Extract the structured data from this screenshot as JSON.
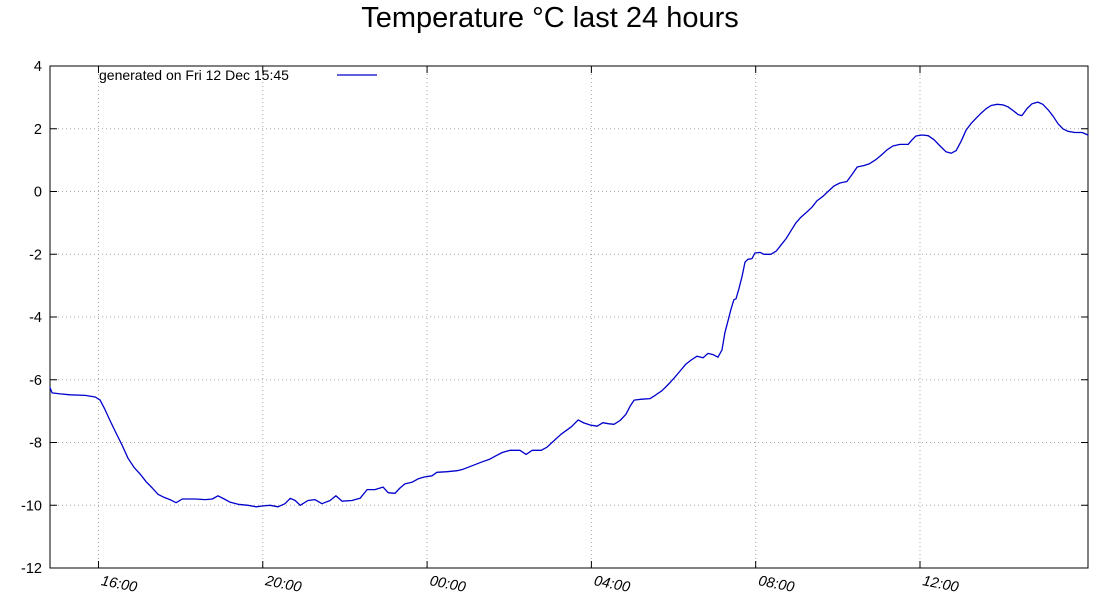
{
  "title": "Temperature °C last 24 hours",
  "legend": {
    "label": "generated on Fri 12 Dec 15:45",
    "position": "top-left"
  },
  "colors": {
    "series": "#0000cc",
    "grid": "#a8a8a8",
    "border": "#000000",
    "text": "#000000",
    "background": "#ffffff"
  },
  "chart_data": {
    "type": "line",
    "title": "Temperature °C last 24 hours",
    "xlabel": "",
    "ylabel": "",
    "grid": true,
    "legend_position": "top-left",
    "x_axis": {
      "min": 14.82,
      "max": 40.09,
      "ticks": [
        {
          "t": 16,
          "label": "16:00"
        },
        {
          "t": 20,
          "label": "20:00"
        },
        {
          "t": 24,
          "label": "00:00"
        },
        {
          "t": 28,
          "label": "04:00"
        },
        {
          "t": 32,
          "label": "08:00"
        },
        {
          "t": 36,
          "label": "12:00"
        }
      ]
    },
    "y_axis": {
      "min": -12,
      "max": 4,
      "tick_step": 2,
      "ticks": [
        4,
        2,
        0,
        -2,
        -4,
        -6,
        -8,
        -10,
        -12
      ]
    },
    "series": [
      {
        "name": "generated on Fri 12 Dec 15:45",
        "color": "#0000cc",
        "points": [
          [
            14.82,
            -6.25
          ],
          [
            14.87,
            -6.42
          ],
          [
            15.07,
            -6.45
          ],
          [
            15.31,
            -6.48
          ],
          [
            15.68,
            -6.5
          ],
          [
            15.92,
            -6.55
          ],
          [
            16.04,
            -6.65
          ],
          [
            16.16,
            -6.95
          ],
          [
            16.28,
            -7.3
          ],
          [
            16.43,
            -7.7
          ],
          [
            16.58,
            -8.1
          ],
          [
            16.72,
            -8.5
          ],
          [
            16.87,
            -8.8
          ],
          [
            17.01,
            -9.0
          ],
          [
            17.16,
            -9.25
          ],
          [
            17.31,
            -9.45
          ],
          [
            17.45,
            -9.65
          ],
          [
            17.6,
            -9.75
          ],
          [
            17.74,
            -9.82
          ],
          [
            17.89,
            -9.92
          ],
          [
            18.04,
            -9.8
          ],
          [
            18.35,
            -9.8
          ],
          [
            18.6,
            -9.82
          ],
          [
            18.77,
            -9.8
          ],
          [
            18.91,
            -9.7
          ],
          [
            19.06,
            -9.8
          ],
          [
            19.2,
            -9.9
          ],
          [
            19.4,
            -9.97
          ],
          [
            19.64,
            -10.0
          ],
          [
            19.84,
            -10.05
          ],
          [
            20.01,
            -10.02
          ],
          [
            20.18,
            -10.0
          ],
          [
            20.37,
            -10.05
          ],
          [
            20.54,
            -9.95
          ],
          [
            20.67,
            -9.78
          ],
          [
            20.79,
            -9.85
          ],
          [
            20.91,
            -10.0
          ],
          [
            21.1,
            -9.85
          ],
          [
            21.27,
            -9.82
          ],
          [
            21.44,
            -9.95
          ],
          [
            21.64,
            -9.85
          ],
          [
            21.78,
            -9.7
          ],
          [
            21.93,
            -9.87
          ],
          [
            22.17,
            -9.85
          ],
          [
            22.37,
            -9.78
          ],
          [
            22.54,
            -9.5
          ],
          [
            22.73,
            -9.5
          ],
          [
            22.93,
            -9.42
          ],
          [
            23.05,
            -9.6
          ],
          [
            23.22,
            -9.62
          ],
          [
            23.34,
            -9.45
          ],
          [
            23.46,
            -9.32
          ],
          [
            23.63,
            -9.27
          ],
          [
            23.78,
            -9.16
          ],
          [
            23.93,
            -9.1
          ],
          [
            24.12,
            -9.06
          ],
          [
            24.24,
            -8.95
          ],
          [
            24.49,
            -8.93
          ],
          [
            24.73,
            -8.9
          ],
          [
            24.88,
            -8.85
          ],
          [
            25.1,
            -8.74
          ],
          [
            25.31,
            -8.63
          ],
          [
            25.53,
            -8.53
          ],
          [
            25.68,
            -8.42
          ],
          [
            25.83,
            -8.32
          ],
          [
            26.02,
            -8.25
          ],
          [
            26.26,
            -8.25
          ],
          [
            26.41,
            -8.38
          ],
          [
            26.56,
            -8.25
          ],
          [
            26.78,
            -8.25
          ],
          [
            26.92,
            -8.15
          ],
          [
            27.04,
            -8.0
          ],
          [
            27.26,
            -7.74
          ],
          [
            27.51,
            -7.5
          ],
          [
            27.68,
            -7.28
          ],
          [
            27.82,
            -7.38
          ],
          [
            27.99,
            -7.45
          ],
          [
            28.14,
            -7.48
          ],
          [
            28.28,
            -7.37
          ],
          [
            28.41,
            -7.4
          ],
          [
            28.55,
            -7.42
          ],
          [
            28.7,
            -7.3
          ],
          [
            28.84,
            -7.1
          ],
          [
            28.94,
            -6.85
          ],
          [
            29.04,
            -6.65
          ],
          [
            29.23,
            -6.62
          ],
          [
            29.43,
            -6.6
          ],
          [
            29.55,
            -6.5
          ],
          [
            29.72,
            -6.35
          ],
          [
            29.87,
            -6.15
          ],
          [
            30.01,
            -5.95
          ],
          [
            30.16,
            -5.72
          ],
          [
            30.3,
            -5.5
          ],
          [
            30.43,
            -5.37
          ],
          [
            30.57,
            -5.25
          ],
          [
            30.72,
            -5.3
          ],
          [
            30.84,
            -5.16
          ],
          [
            30.96,
            -5.2
          ],
          [
            31.08,
            -5.28
          ],
          [
            31.18,
            -5.05
          ],
          [
            31.25,
            -4.5
          ],
          [
            31.33,
            -4.1
          ],
          [
            31.4,
            -3.75
          ],
          [
            31.47,
            -3.45
          ],
          [
            31.52,
            -3.42
          ],
          [
            31.59,
            -3.1
          ],
          [
            31.67,
            -2.7
          ],
          [
            31.74,
            -2.25
          ],
          [
            31.81,
            -2.16
          ],
          [
            31.91,
            -2.14
          ],
          [
            31.98,
            -1.96
          ],
          [
            32.11,
            -1.94
          ],
          [
            32.2,
            -2.0
          ],
          [
            32.37,
            -2.0
          ],
          [
            32.5,
            -1.9
          ],
          [
            32.62,
            -1.7
          ],
          [
            32.74,
            -1.5
          ],
          [
            32.86,
            -1.25
          ],
          [
            32.98,
            -1.0
          ],
          [
            33.1,
            -0.82
          ],
          [
            33.25,
            -0.65
          ],
          [
            33.37,
            -0.5
          ],
          [
            33.49,
            -0.3
          ],
          [
            33.64,
            -0.15
          ],
          [
            33.76,
            0.0
          ],
          [
            33.91,
            0.18
          ],
          [
            34.05,
            0.27
          ],
          [
            34.22,
            0.32
          ],
          [
            34.35,
            0.55
          ],
          [
            34.47,
            0.78
          ],
          [
            34.64,
            0.83
          ],
          [
            34.76,
            0.88
          ],
          [
            34.91,
            1.0
          ],
          [
            35.05,
            1.15
          ],
          [
            35.2,
            1.33
          ],
          [
            35.34,
            1.45
          ],
          [
            35.51,
            1.5
          ],
          [
            35.71,
            1.5
          ],
          [
            35.81,
            1.65
          ],
          [
            35.9,
            1.77
          ],
          [
            36.05,
            1.8
          ],
          [
            36.2,
            1.78
          ],
          [
            36.34,
            1.65
          ],
          [
            36.49,
            1.45
          ],
          [
            36.63,
            1.27
          ],
          [
            36.76,
            1.22
          ],
          [
            36.88,
            1.3
          ],
          [
            37.0,
            1.6
          ],
          [
            37.12,
            1.95
          ],
          [
            37.24,
            2.16
          ],
          [
            37.36,
            2.33
          ],
          [
            37.49,
            2.5
          ],
          [
            37.61,
            2.64
          ],
          [
            37.73,
            2.74
          ],
          [
            37.88,
            2.78
          ],
          [
            38.02,
            2.76
          ],
          [
            38.14,
            2.7
          ],
          [
            38.27,
            2.58
          ],
          [
            38.39,
            2.45
          ],
          [
            38.48,
            2.42
          ],
          [
            38.61,
            2.65
          ],
          [
            38.73,
            2.8
          ],
          [
            38.87,
            2.85
          ],
          [
            38.99,
            2.78
          ],
          [
            39.12,
            2.6
          ],
          [
            39.24,
            2.4
          ],
          [
            39.36,
            2.16
          ],
          [
            39.48,
            2.0
          ],
          [
            39.6,
            1.92
          ],
          [
            39.77,
            1.88
          ],
          [
            39.95,
            1.88
          ],
          [
            40.09,
            1.8
          ]
        ]
      }
    ]
  }
}
